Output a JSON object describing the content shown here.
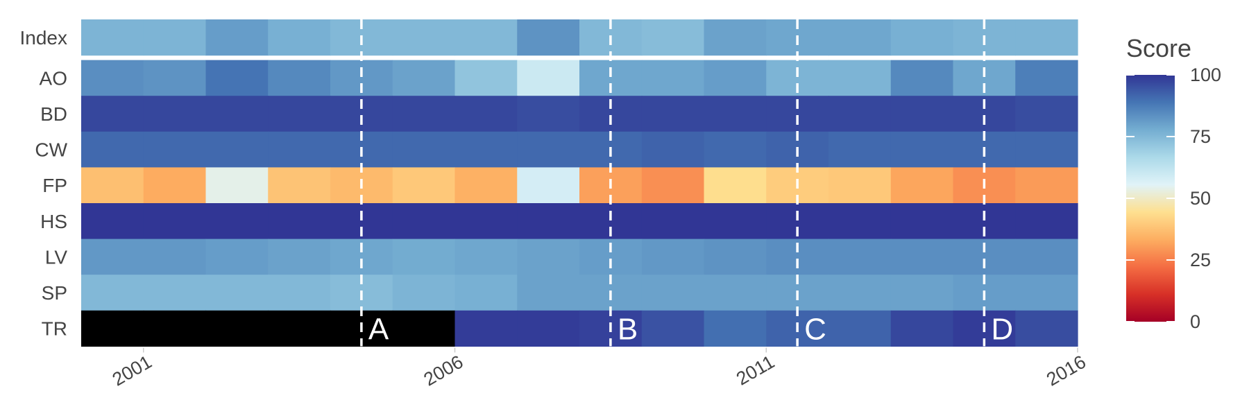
{
  "chart_data": {
    "type": "heatmap",
    "title": "",
    "xlabel": "",
    "ylabel": "",
    "x": [
      2000.5,
      2001.5,
      2002.5,
      2003.5,
      2004.5,
      2005.5,
      2006.5,
      2007.5,
      2008.5,
      2009.5,
      2010.5,
      2011.5,
      2012.5,
      2013.5,
      2014.5,
      2015.5
    ],
    "xlim": [
      2000.0,
      2016.0
    ],
    "x_ticks": [
      2001,
      2006,
      2011,
      2016
    ],
    "x_tick_labels": [
      "2001",
      "2006",
      "2011",
      "2016"
    ],
    "rows": [
      {
        "name": "Index",
        "values": [
          76,
          76,
          81,
          77,
          75,
          75,
          75,
          83,
          75,
          74,
          80,
          79,
          79,
          77,
          76,
          76
        ]
      },
      {
        "name": "AO",
        "values": [
          84,
          83,
          89,
          85,
          82,
          80,
          72,
          60,
          79,
          79,
          81,
          76,
          76,
          85,
          79,
          87
        ]
      },
      {
        "name": "BD",
        "values": [
          97,
          97,
          97,
          97,
          97,
          97,
          97,
          96,
          97,
          97,
          97,
          97,
          97,
          97,
          97,
          96
        ]
      },
      {
        "name": "CW",
        "values": [
          91,
          91,
          91,
          91,
          91,
          91,
          91,
          91,
          91,
          92,
          91,
          92,
          91,
          91,
          91,
          91
        ]
      },
      {
        "name": "FP",
        "values": [
          37,
          33,
          54,
          38,
          36,
          39,
          34,
          58,
          31,
          28,
          44,
          40,
          39,
          32,
          28,
          30
        ]
      },
      {
        "name": "HS",
        "values": [
          100,
          100,
          100,
          100,
          100,
          100,
          100,
          100,
          100,
          100,
          100,
          100,
          100,
          100,
          100,
          100
        ]
      },
      {
        "name": "LV",
        "values": [
          82,
          82,
          81,
          80,
          79,
          78,
          79,
          80,
          81,
          82,
          83,
          84,
          84,
          84,
          84,
          84
        ]
      },
      {
        "name": "SP",
        "values": [
          75,
          75,
          75,
          75,
          74,
          76,
          77,
          80,
          80,
          80,
          80,
          80,
          80,
          80,
          81,
          81
        ]
      },
      {
        "name": "TR",
        "values": [
          null,
          null,
          null,
          null,
          null,
          null,
          99,
          99,
          98,
          95,
          90,
          92,
          92,
          97,
          99,
          96
        ]
      }
    ],
    "missing_color": "#000000",
    "row_gap_after": "Index",
    "legend": {
      "title": "Score",
      "ticks": [
        0,
        25,
        50,
        75,
        100
      ],
      "tick_labels": [
        "0",
        "25",
        "50",
        "75",
        "100"
      ],
      "range": [
        0,
        100
      ],
      "placement": "right"
    },
    "color_scale": [
      "#a50026",
      "#d73027",
      "#f46d43",
      "#fdae61",
      "#fee090",
      "#e0f3f8",
      "#abd9e9",
      "#74add1",
      "#4575b4",
      "#313695"
    ],
    "color_scale_range": [
      0,
      100
    ],
    "events": [
      {
        "label": "A",
        "x": 2004.5
      },
      {
        "label": "B",
        "x": 2008.5
      },
      {
        "label": "C",
        "x": 2011.5
      },
      {
        "label": "D",
        "x": 2014.5
      }
    ],
    "grid": false
  }
}
